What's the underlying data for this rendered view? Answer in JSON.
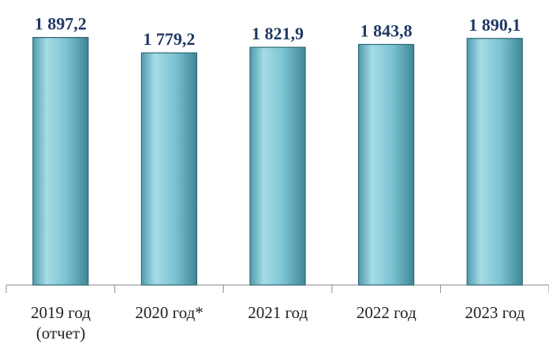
{
  "chart_data": {
    "type": "bar",
    "categories": [
      "2019 год (отчет)",
      "2020 год*",
      "2021 год",
      "2022 год",
      "2023 год"
    ],
    "values": [
      1897.2,
      1779.2,
      1821.9,
      1843.8,
      1890.1
    ],
    "value_labels": [
      "1 897,2",
      "1 779,2",
      "1 821,9",
      "1 843,8",
      "1 890,1"
    ],
    "color": "#6fb8c8",
    "ylim": [
      0,
      2100
    ]
  }
}
